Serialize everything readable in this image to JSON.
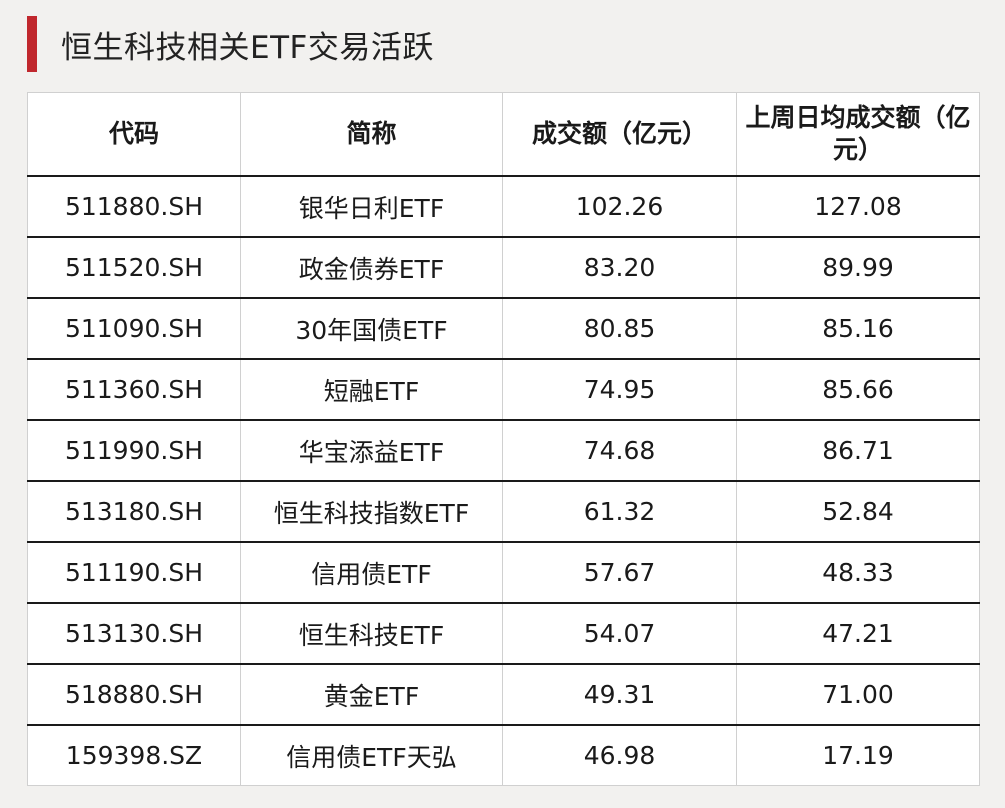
{
  "title": "恒生科技相关ETF交易活跃",
  "table": {
    "headers": [
      "代码",
      "简称",
      "成交额（亿元）",
      "上周日均成交额（亿元）"
    ],
    "rows": [
      [
        "511880.SH",
        "银华日利ETF",
        "102.26",
        "127.08"
      ],
      [
        "511520.SH",
        "政金债券ETF",
        "83.20",
        "89.99"
      ],
      [
        "511090.SH",
        "30年国债ETF",
        "80.85",
        "85.16"
      ],
      [
        "511360.SH",
        "短融ETF",
        "74.95",
        "85.66"
      ],
      [
        "511990.SH",
        "华宝添益ETF",
        "74.68",
        "86.71"
      ],
      [
        "513180.SH",
        "恒生科技指数ETF",
        "61.32",
        "52.84"
      ],
      [
        "511190.SH",
        "信用债ETF",
        "57.67",
        "48.33"
      ],
      [
        "513130.SH",
        "恒生科技ETF",
        "54.07",
        "47.21"
      ],
      [
        "518880.SH",
        "黄金ETF",
        "49.31",
        "71.00"
      ],
      [
        "159398.SZ",
        "信用债ETF天弘",
        "46.98",
        "17.19"
      ]
    ]
  },
  "colors": {
    "accent": "#c0272d",
    "background": "#f2f1ef"
  }
}
